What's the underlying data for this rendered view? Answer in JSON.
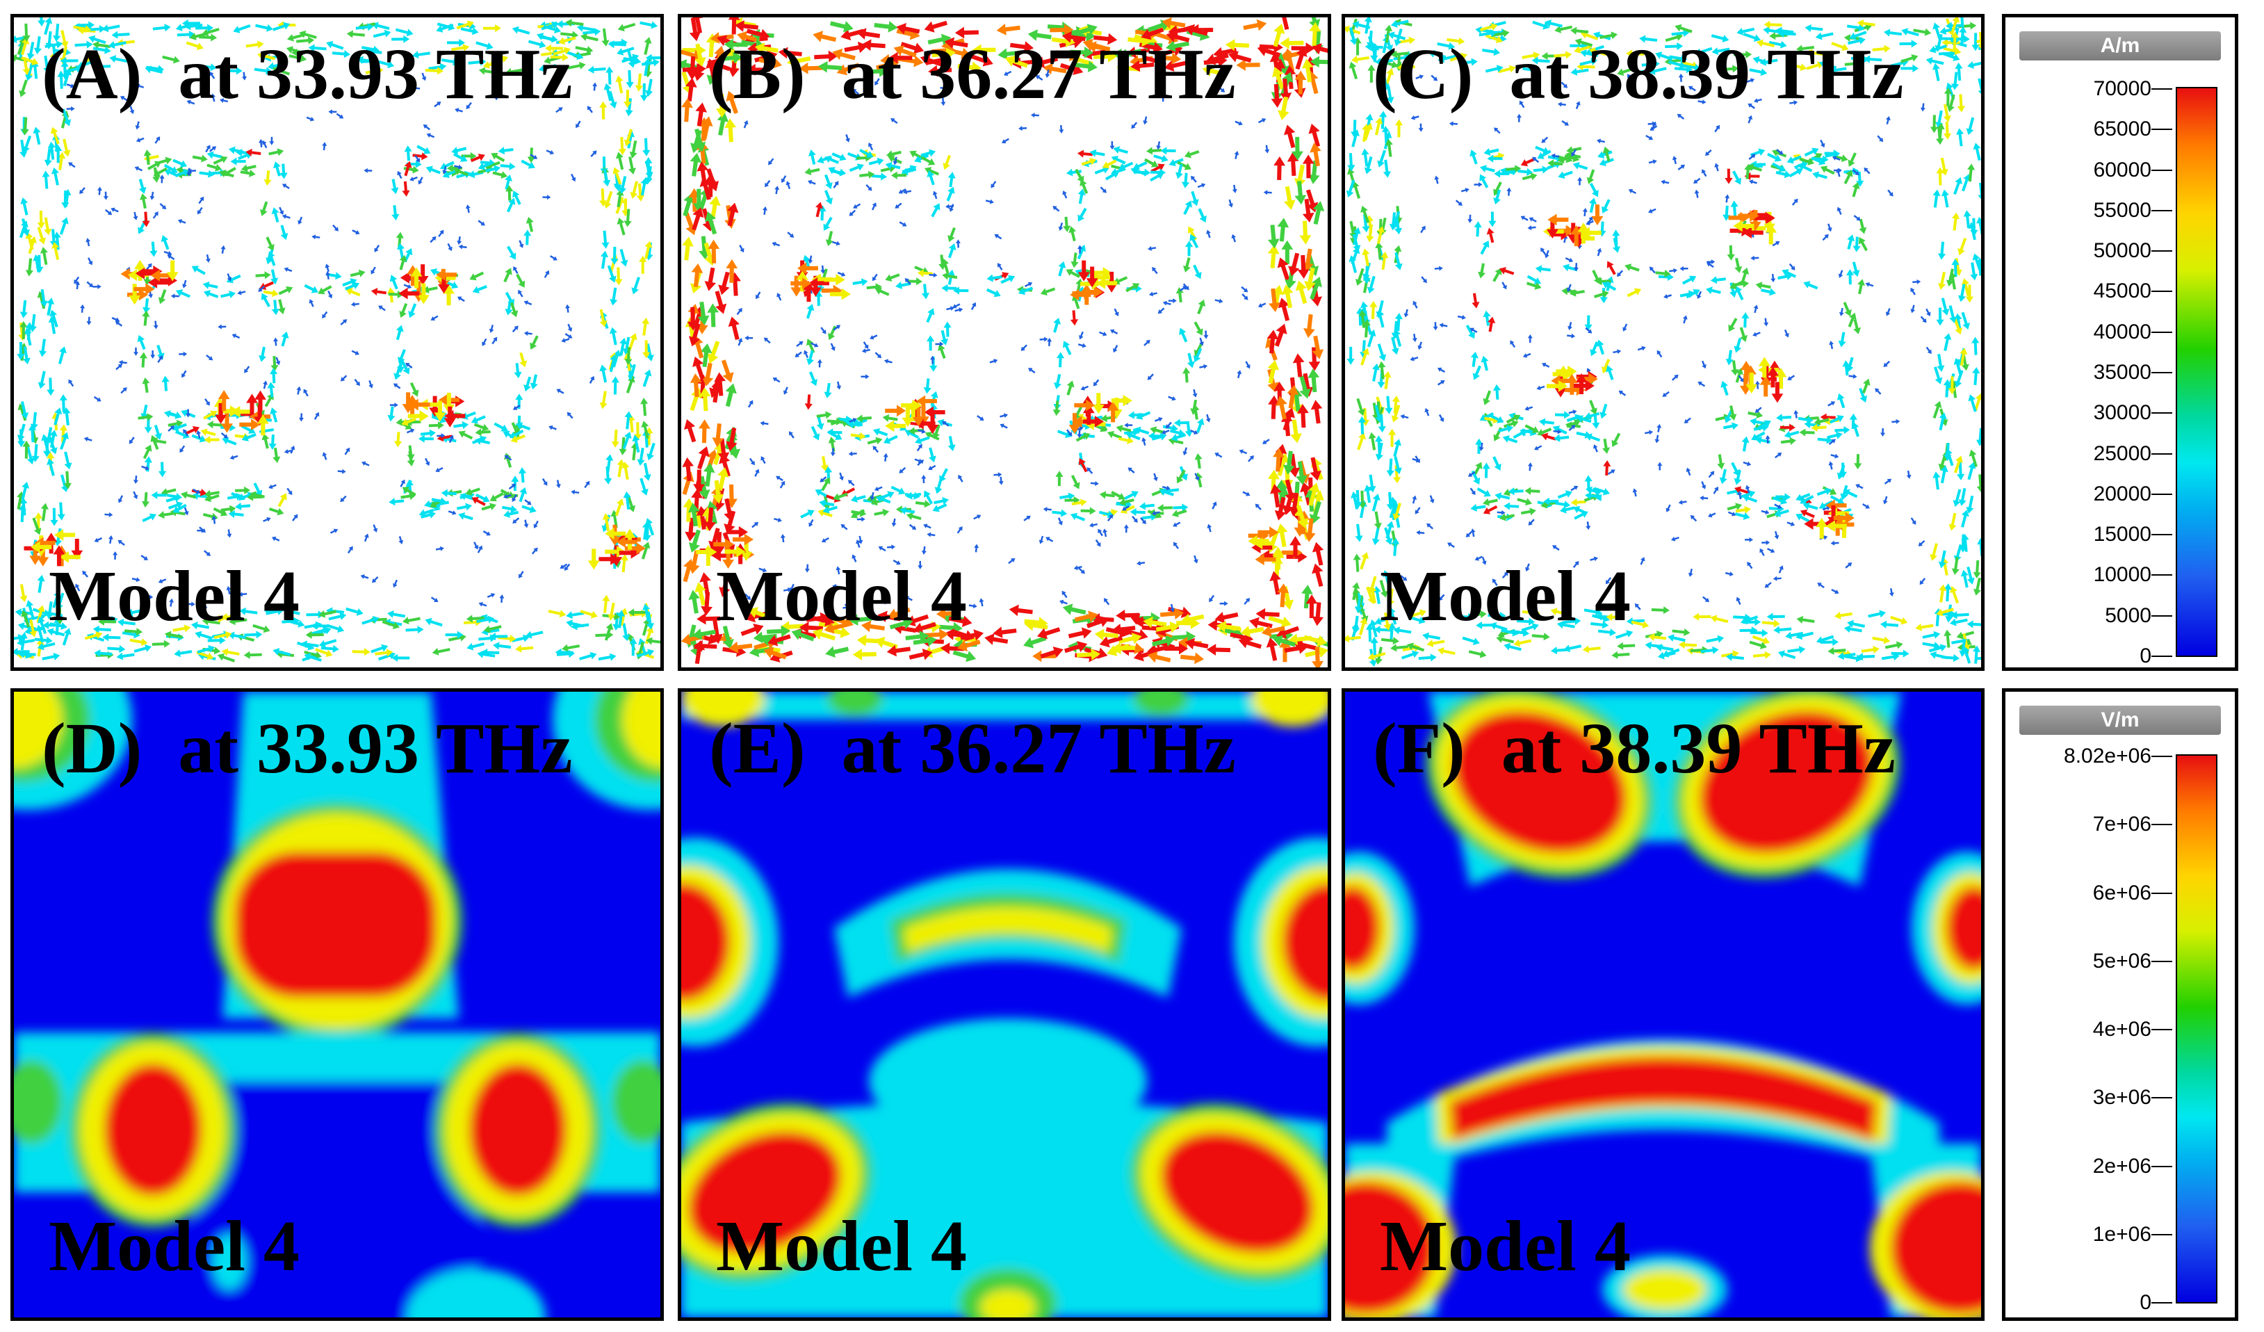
{
  "panels": [
    {
      "id": "A",
      "label": "(A)  at 33.93 THz",
      "model": "Model 4"
    },
    {
      "id": "B",
      "label": "(B)  at 36.27 THz",
      "model": "Model 4"
    },
    {
      "id": "C",
      "label": "(C)  at 38.39 THz",
      "model": "Model 4"
    },
    {
      "id": "D",
      "label": "(D)  at 33.93 THz",
      "model": "Model 4"
    },
    {
      "id": "E",
      "label": "(E)  at 36.27 THz",
      "model": "Model 4"
    },
    {
      "id": "F",
      "label": "(F)  at 38.39 THz",
      "model": "Model 4"
    }
  ],
  "legend_current": {
    "unit": "A/m",
    "ticks": [
      "70000",
      "65000",
      "60000",
      "55000",
      "50000",
      "45000",
      "40000",
      "35000",
      "30000",
      "25000",
      "20000",
      "15000",
      "10000",
      "5000",
      "0"
    ]
  },
  "legend_field": {
    "unit": "V/m",
    "ticks": [
      "8.02e+06",
      "7e+06",
      "6e+06",
      "5e+06",
      "4e+06",
      "3e+06",
      "2e+06",
      "1e+06",
      "0"
    ]
  },
  "colors": {
    "blue": "#0000ee",
    "cyan": "#00e0f0",
    "green": "#40d040",
    "yellow": "#f0f000",
    "red": "#ee1010",
    "orange": "#ff8000"
  }
}
